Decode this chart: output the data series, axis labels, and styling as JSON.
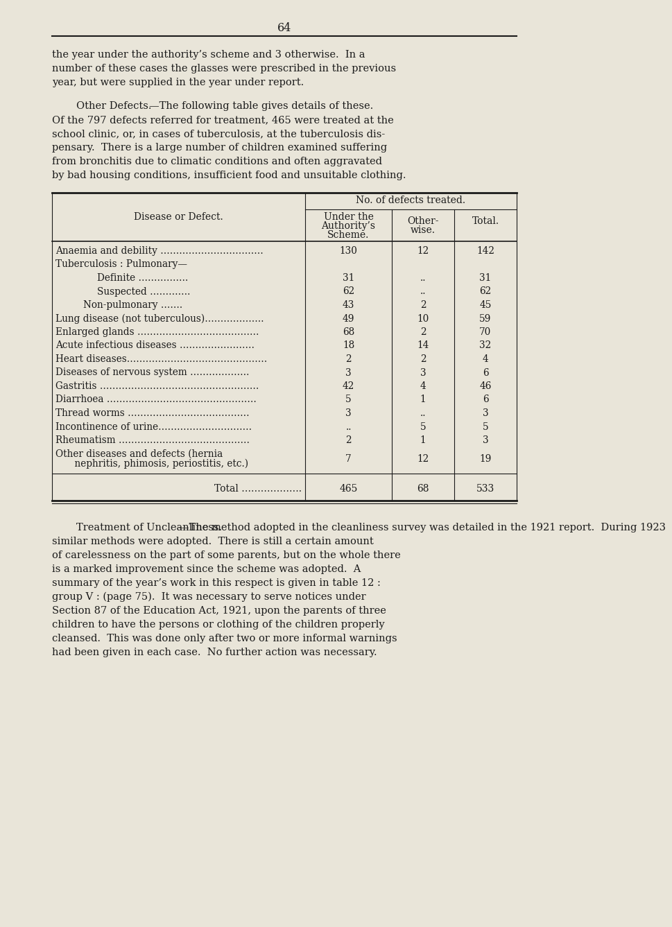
{
  "bg_color": "#e9e5d9",
  "text_color": "#1a1a1a",
  "page_number": "64",
  "para1_lines": [
    "the year under the authority’s scheme and 3 otherwise.  In a",
    "number of these cases the glasses were prescribed in the previous",
    "year, but were supplied in the year under report."
  ],
  "para2_line1_italic": "Other Defects.",
  "para2_rest_lines": [
    "—The following table gives details of these.",
    "Of the 797 defects referred for treatment, 465 were treated at the",
    "school clinic, or, in cases of tuberculosis, at the tuberculosis dis-",
    "pensary.  There is a large number of children examined suffering",
    "from bronchitis due to climatic conditions and often aggravated",
    "by bad housing conditions, insufficient food and unsuitable clothing."
  ],
  "no_defects_label": "No. of defects treated.",
  "col1_header": "Disease or Defect.",
  "col2_header": [
    "Under the",
    "Authority’s",
    "Scheme."
  ],
  "col3_header": [
    "Other-",
    "wise."
  ],
  "col4_header": "Total.",
  "table_rows": [
    {
      "d": "Anaemia and debility ……………………………",
      "u": "130",
      "o": "12",
      "t": "142",
      "indent": 0
    },
    {
      "d": "Tuberculosis : Pulmonary—",
      "u": "",
      "o": "",
      "t": "",
      "indent": 0
    },
    {
      "d": "Definite …………….",
      "u": "31",
      "o": "..",
      "t": "31",
      "indent": 60
    },
    {
      "d": "Suspected ………….",
      "u": "62",
      "o": "..",
      "t": "62",
      "indent": 60
    },
    {
      "d": "Non-pulmonary …….",
      "u": "43",
      "o": "2",
      "t": "45",
      "indent": 40
    },
    {
      "d": "Lung disease (not tuberculous)……………….",
      "u": "49",
      "o": "10",
      "t": "59",
      "indent": 0
    },
    {
      "d": "Enlarged glands …………………………………",
      "u": "68",
      "o": "2",
      "t": "70",
      "indent": 0
    },
    {
      "d": "Acute infectious diseases ……………………",
      "u": "18",
      "o": "14",
      "t": "32",
      "indent": 0
    },
    {
      "d": "Heart diseases………………………………………",
      "u": "2",
      "o": "2",
      "t": "4",
      "indent": 0
    },
    {
      "d": "Diseases of nervous system ……………….",
      "u": "3",
      "o": "3",
      "t": "6",
      "indent": 0
    },
    {
      "d": "Gastritis ……………………………………………",
      "u": "42",
      "o": "4",
      "t": "46",
      "indent": 0
    },
    {
      "d": "Diarrhoea …………………………………………",
      "u": "5",
      "o": "1",
      "t": "6",
      "indent": 0
    },
    {
      "d": "Thread worms …………………………………",
      "u": "3",
      "o": "..",
      "t": "3",
      "indent": 0
    },
    {
      "d": "Incontinence of urine…………………………",
      "u": "..",
      "o": "5",
      "t": "5",
      "indent": 0
    },
    {
      "d": "Rheumatism ……………………………………",
      "u": "2",
      "o": "1",
      "t": "3",
      "indent": 0
    },
    {
      "d": "Other diseases and defects (hernia",
      "d2": "    nephritis, phimosis, periostitis, etc.)",
      "u": "7",
      "o": "12",
      "t": "19",
      "indent": 0,
      "multiline": true
    }
  ],
  "total_row": {
    "d": "Total ……………….",
    "u": "465",
    "o": "68",
    "t": "533"
  },
  "bottom_heading": "Treatment of Uncleanliness.",
  "bottom_lines": [
    "—The method adopted in the cleanliness survey was detailed in the 1921 report.  During 1923",
    "similar methods were adopted.  There is still a certain amount",
    "of carelessness on the part of some parents, but on the whole there",
    "is a marked improvement since the scheme was adopted.  A",
    "summary of the year’s work in this respect is given in table 12 :",
    "group V : (page 75).  It was necessary to serve notices under",
    "Section 87 of the Education Act, 1921, upon the parents of three",
    "children to have the persons or clothing of the children properly",
    "cleansed.  This was done only after two or more informal warnings",
    "had been given in each case.  No further action was necessary."
  ]
}
